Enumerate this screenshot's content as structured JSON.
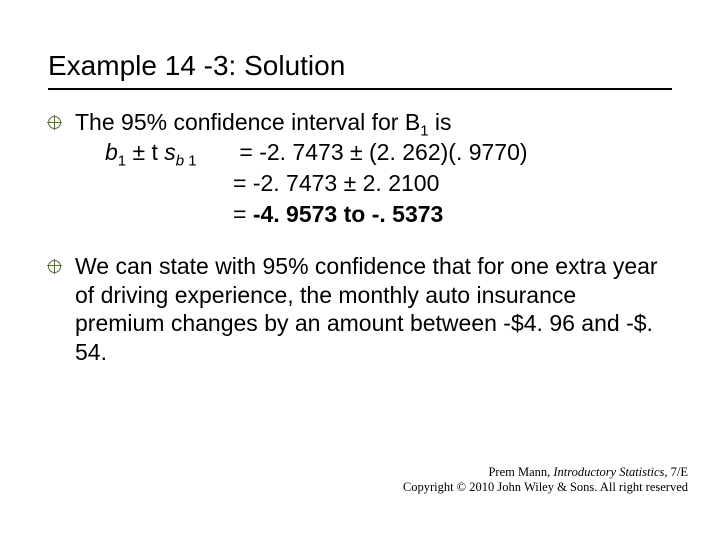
{
  "colors": {
    "text": "#000000",
    "background": "#ffffff",
    "bullet_accent": "#5a6b3a",
    "underline": "#000000"
  },
  "typography": {
    "title_fontsize_pt": 28,
    "body_fontsize_pt": 23,
    "footer_fontsize_pt": 12.5,
    "title_family": "Arial",
    "body_family": "Verdana",
    "footer_family": "Times New Roman"
  },
  "title": "Example 14 -3: Solution",
  "bullet1": {
    "intro_pre": "The 95% confidence interval for B",
    "intro_sub": "1",
    "intro_post": " is",
    "line1": {
      "lhs_b": "b",
      "lhs_b_sub": "1",
      "lhs_pm_t": " ± t ",
      "lhs_s": "s",
      "lhs_s_sub_b": "b",
      "lhs_s_sub_1": " 1",
      "eq": " = ",
      "rhs": "-2. 7473 ± (2. 262)(. 9770)"
    },
    "line2": {
      "eq": "= ",
      "rhs": "-2. 7473 ± 2. 2100"
    },
    "line3": {
      "eq": "= ",
      "rhs": "-4. 9573 to -. 5373"
    }
  },
  "bullet2": {
    "text": "We can state with 95% confidence that for one extra year of driving experience, the monthly auto insurance premium changes by an amount between -$4. 96 and -$. 54."
  },
  "footer": {
    "line1_author": "Prem Mann, ",
    "line1_title": "Introductory Statistics",
    "line1_edition": ", 7/E",
    "line2": "Copyright © 2010 John Wiley & Sons. All right reserved"
  }
}
